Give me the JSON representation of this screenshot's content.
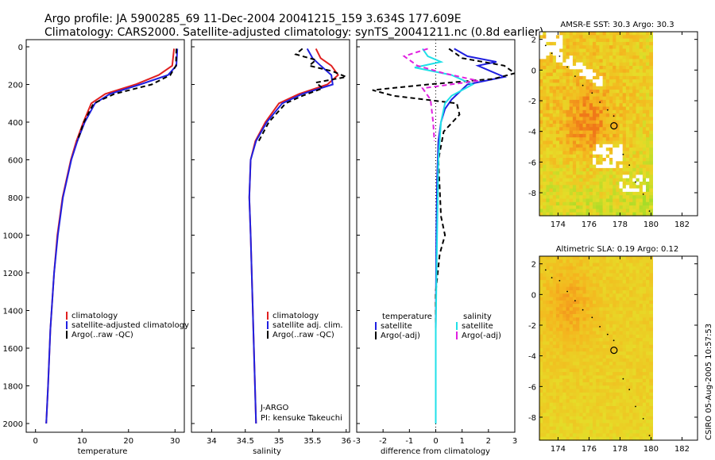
{
  "header": {
    "line1": "Argo profile: JA 5900285_69 11-Dec-2004 20041215_159 3.634S 177.609E",
    "line2": "Climatology: CARS2000. Satellite-adjusted climatology: synTS_20041211.nc (0.8d earlier)"
  },
  "side_stamp": "CSIRO 05-Aug-2005 10:57:53",
  "colors": {
    "climatology": "#e02020",
    "satellite": "#2020e0",
    "argo": "#000000",
    "cyan": "#20e0e8",
    "magenta": "#e020e0",
    "map_bg": "#f3b21a"
  },
  "chart_data": [
    {
      "type": "line",
      "id": "temperature",
      "xlabel": "temperature",
      "ylabel": "",
      "xlim": [
        -2,
        32
      ],
      "ylim": [
        2050,
        0
      ],
      "xticks": [
        0,
        10,
        20,
        30
      ],
      "yticks": [
        0,
        200,
        400,
        600,
        800,
        1000,
        1200,
        1400,
        1600,
        1800,
        2000
      ],
      "series": [
        {
          "name": "climatology",
          "color": "#e02020",
          "dash": "",
          "y": [
            10,
            100,
            150,
            200,
            250,
            300,
            400,
            500,
            600,
            800,
            1000,
            1200,
            1500,
            1800,
            2000
          ],
          "x": [
            29.8,
            29.4,
            26.5,
            21.5,
            15.0,
            12.0,
            10.3,
            8.8,
            7.6,
            5.8,
            4.7,
            4.0,
            3.2,
            2.7,
            2.3
          ]
        },
        {
          "name": "satellite-adjusted climatology",
          "color": "#2020e0",
          "dash": "",
          "y": [
            10,
            100,
            150,
            200,
            250,
            300,
            400,
            500,
            600,
            800,
            1000,
            1200,
            1500,
            1800,
            2000
          ],
          "x": [
            30.5,
            30.3,
            28.5,
            22.5,
            16.0,
            12.8,
            10.6,
            9.0,
            7.7,
            5.9,
            4.8,
            4.0,
            3.2,
            2.7,
            2.3
          ]
        },
        {
          "name": "Argo(..raw -QC)",
          "color": "#000000",
          "dash": "6,4",
          "y": [
            10,
            100,
            150,
            200,
            250,
            300,
            400,
            500
          ],
          "x": [
            30.3,
            30.2,
            29.0,
            25.0,
            17.0,
            12.5,
            10.4,
            9.0
          ]
        }
      ],
      "legend": [
        {
          "label": "climatology",
          "color": "#e02020"
        },
        {
          "label": "satellite-adjusted climatology",
          "color": "#2020e0"
        },
        {
          "label": "Argo(..raw -QC)",
          "color": "#000000"
        }
      ]
    },
    {
      "type": "line",
      "id": "salinity",
      "xlabel": "salinity",
      "xlim": [
        33.7,
        36.05
      ],
      "ylim": [
        2050,
        0
      ],
      "xticks": [
        34,
        34.5,
        35,
        35.5,
        36
      ],
      "series": [
        {
          "name": "climatology",
          "color": "#e02020",
          "dash": "",
          "y": [
            10,
            60,
            100,
            150,
            200,
            250,
            300,
            400,
            500,
            600,
            800,
            1000,
            1500,
            2000
          ],
          "x": [
            35.55,
            35.62,
            35.78,
            35.88,
            35.72,
            35.3,
            35.0,
            34.8,
            34.65,
            34.58,
            34.56,
            34.58,
            34.62,
            34.66
          ]
        },
        {
          "name": "satellite adj. clim.",
          "color": "#2020e0",
          "dash": "",
          "y": [
            10,
            60,
            100,
            150,
            200,
            250,
            300,
            400,
            500,
            600,
            800,
            1000,
            1500,
            2000
          ],
          "x": [
            35.42,
            35.5,
            35.62,
            35.78,
            35.8,
            35.35,
            35.05,
            34.82,
            34.66,
            34.58,
            34.56,
            34.58,
            34.62,
            34.66
          ]
        },
        {
          "name": "Argo(..raw -QC)",
          "color": "#000000",
          "dash": "6,4",
          "y": [
            10,
            40,
            70,
            100,
            130,
            160,
            190,
            220,
            260,
            300,
            400,
            500
          ],
          "x": [
            35.35,
            35.25,
            35.55,
            35.45,
            35.8,
            36.0,
            35.55,
            35.65,
            35.35,
            35.1,
            34.85,
            34.7
          ]
        }
      ],
      "legend": [
        {
          "label": "climatology",
          "color": "#e02020"
        },
        {
          "label": "satellite adj. clim.",
          "color": "#2020e0"
        },
        {
          "label": "Argo(..raw -QC)",
          "color": "#000000"
        }
      ],
      "note": [
        "J-ARGO",
        "PI: kensuke Takeuchi"
      ]
    },
    {
      "type": "line",
      "id": "difference",
      "xlabel": "difference from climatology",
      "xlim": [
        -3,
        3
      ],
      "ylim": [
        2050,
        0
      ],
      "xticks": [
        -3,
        -2,
        -1,
        0,
        1,
        2,
        3
      ],
      "series": [
        {
          "name": "temperature satellite",
          "color": "#2020e0",
          "dash": "",
          "y": [
            10,
            50,
            80,
            100,
            130,
            160,
            200,
            240,
            280,
            330,
            400,
            500,
            700,
            1000,
            1500,
            2000
          ],
          "x": [
            0.7,
            1.2,
            2.3,
            1.6,
            2.1,
            2.6,
            1.2,
            0.9,
            0.6,
            0.35,
            0.2,
            0.1,
            0.05,
            0.02,
            0.0,
            0.0
          ]
        },
        {
          "name": "temperature Argo(-adj)",
          "color": "#000000",
          "dash": "6,4",
          "y": [
            10,
            60,
            100,
            140,
            170,
            200,
            230,
            260,
            300,
            360,
            450,
            600,
            900,
            1000,
            1100,
            1300,
            1500
          ],
          "x": [
            0.5,
            1.0,
            2.6,
            3.0,
            2.2,
            -0.3,
            -2.4,
            -1.6,
            0.8,
            0.9,
            0.3,
            0.1,
            0.2,
            0.35,
            0.15,
            0.0,
            0.0
          ]
        },
        {
          "name": "salinity satellite",
          "color": "#20e0e8",
          "dash": "",
          "y": [
            10,
            50,
            80,
            110,
            150,
            200,
            260,
            300,
            400,
            600,
            1000,
            1500,
            2000
          ],
          "x": [
            -0.5,
            -0.3,
            0.2,
            -0.8,
            0.6,
            1.4,
            0.6,
            0.35,
            0.2,
            0.1,
            0.05,
            0.0,
            0.0
          ]
        },
        {
          "name": "salinity Argo(-adj)",
          "color": "#e020e0",
          "dash": "6,4",
          "y": [
            10,
            50,
            100,
            140,
            180,
            220,
            280,
            400,
            500
          ],
          "x": [
            -0.3,
            -1.2,
            -0.7,
            0.3,
            1.6,
            -0.5,
            -0.2,
            -0.1,
            -0.05
          ]
        }
      ],
      "legend": [
        {
          "label": "temperature",
          "color": ""
        },
        {
          "label": "satellite",
          "color": "#2020e0"
        },
        {
          "label": "Argo(-adj)",
          "color": "#000000"
        },
        {
          "label": "salinity",
          "color": ""
        },
        {
          "label": "satellite",
          "color": "#20e0e8"
        },
        {
          "label": "Argo(-adj)",
          "color": "#e020e0"
        }
      ]
    },
    {
      "type": "heatmap",
      "id": "sst-map",
      "title": "AMSR-E SST: 30.3 Argo: 30.3",
      "xlim": [
        172.8,
        183.0
      ],
      "ylim": [
        -9.5,
        2.5
      ],
      "xticks": [
        174,
        176,
        178,
        180,
        182
      ],
      "yticks": [
        2,
        0,
        -2,
        -4,
        -6,
        -8
      ],
      "profile_location": [
        177.609,
        -3.634
      ]
    },
    {
      "type": "heatmap",
      "id": "sla-map",
      "title": "Altimetric SLA: 0.19 Argo: 0.12",
      "xlim": [
        172.8,
        183.0
      ],
      "ylim": [
        -9.5,
        2.5
      ],
      "xticks": [
        174,
        176,
        178,
        180,
        182
      ],
      "yticks": [
        2,
        0,
        -2,
        -4,
        -6,
        -8
      ],
      "profile_location": [
        177.609,
        -3.634
      ]
    }
  ]
}
